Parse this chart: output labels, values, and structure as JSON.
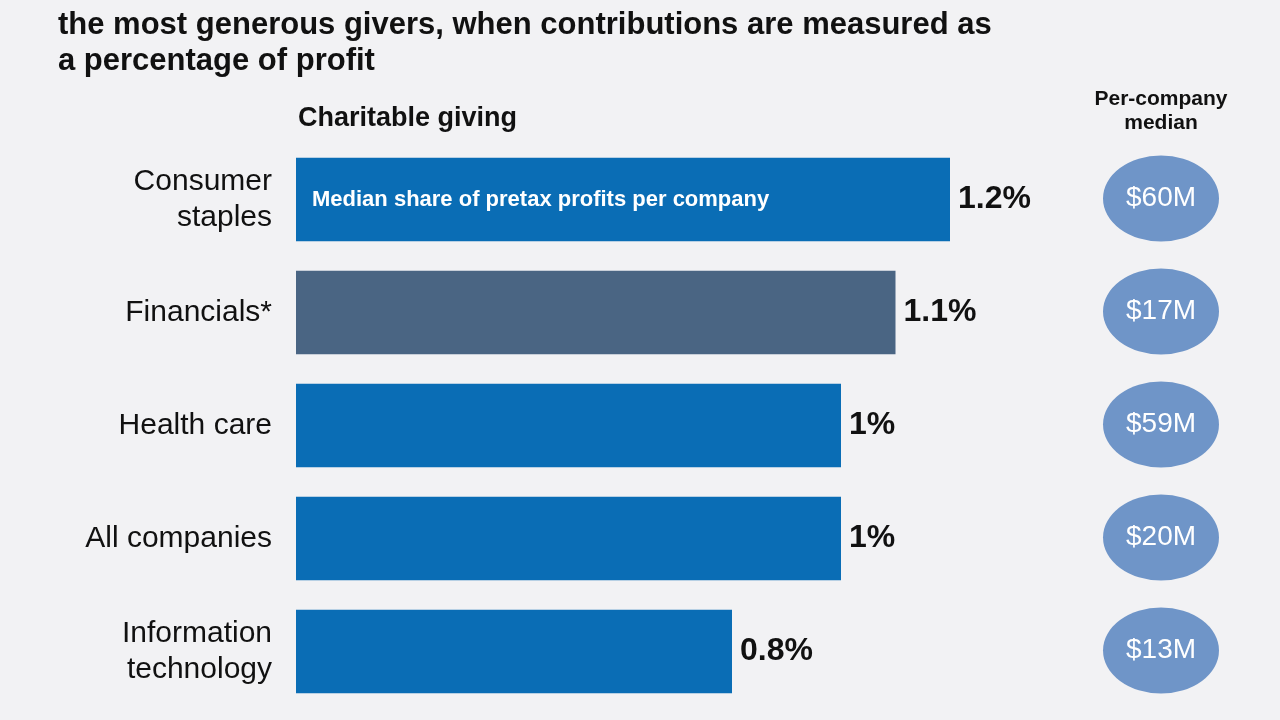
{
  "chart_data": [
    {
      "type": "bar",
      "orientation": "horizontal",
      "title": "the most generous givers, when contributions are measured as a percentage of profit",
      "subtitle": "Charitable giving",
      "categories": [
        "Consumer staples",
        "Financials*",
        "Health care",
        "All companies",
        "Information technology"
      ],
      "values": [
        1.2,
        1.1,
        1,
        1,
        0.8
      ],
      "value_labels": [
        "1.2%",
        "1.1%",
        "1%",
        "1%",
        "0.8%"
      ],
      "colors": [
        "#0a6db5",
        "#4a6583",
        "#0a6db5",
        "#0a6db5",
        "#0a6db5"
      ],
      "annotations": [
        "Median share of pretax profits per company"
      ]
    },
    {
      "type": "other",
      "title": "Per-company median",
      "categories": [
        null,
        null,
        null,
        null,
        null
      ],
      "values": [
        60,
        17,
        59,
        20,
        13
      ],
      "value_labels": [
        "$60M",
        "$17M",
        "$59M",
        "$20M",
        "$13M"
      ],
      "color": "#6f95c8"
    }
  ]
}
